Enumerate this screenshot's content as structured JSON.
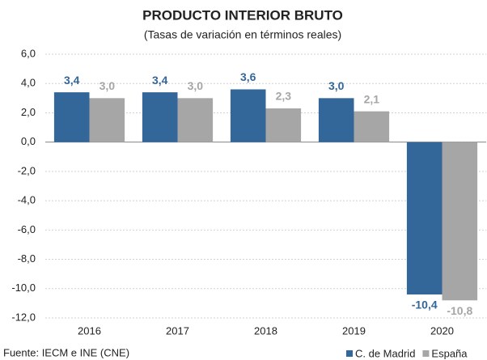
{
  "chart_data": {
    "type": "bar",
    "title": "PRODUCTO INTERIOR BRUTO",
    "subtitle": "(Tasas de variación en términos reales)",
    "source": "Fuente: IECM e INE (CNE)",
    "categories": [
      "2016",
      "2017",
      "2018",
      "2019",
      "2020"
    ],
    "series": [
      {
        "name": "C. de Madrid",
        "color": "#336699",
        "values": [
          3.4,
          3.4,
          3.6,
          3.0,
          -10.4
        ],
        "value_labels": [
          "3,4",
          "3,4",
          "3,6",
          "3,0",
          "-10,4"
        ]
      },
      {
        "name": "España",
        "color": "#a6a6a6",
        "values": [
          3.0,
          3.0,
          2.3,
          2.1,
          -10.8
        ],
        "value_labels": [
          "3,0",
          "3,0",
          "2,3",
          "2,1",
          "-10,8"
        ]
      }
    ],
    "ylim": [
      -12,
      6
    ],
    "yticks": [
      {
        "value": -12,
        "label": "-12,0"
      },
      {
        "value": -10,
        "label": "-10,0"
      },
      {
        "value": -8,
        "label": "-8,0"
      },
      {
        "value": -6,
        "label": "-6,0"
      },
      {
        "value": -4,
        "label": "-4,0"
      },
      {
        "value": -2,
        "label": "-2,0"
      },
      {
        "value": 0,
        "label": "0,0"
      },
      {
        "value": 2,
        "label": "2,0"
      },
      {
        "value": 4,
        "label": "4,0"
      },
      {
        "value": 6,
        "label": "6,0"
      }
    ],
    "grid": true,
    "legend": "bottom-right"
  }
}
